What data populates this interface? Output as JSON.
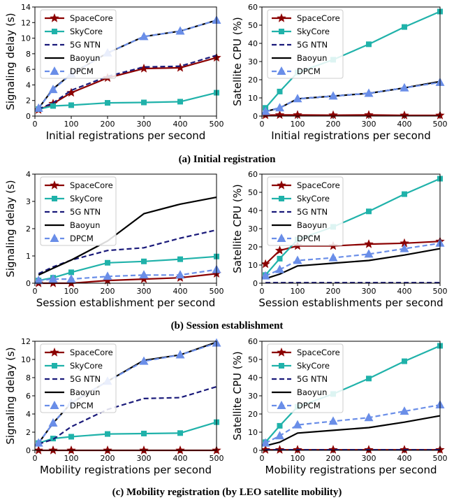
{
  "captions": [
    "(a) Initial registration",
    "(b) Session establishment",
    "(c) Mobility registration (by LEO satellite mobility)"
  ],
  "colors": {
    "SpaceCore": "#8B0000",
    "SkyCore": "#20B2AA",
    "5G NTN": "#1A1A7A",
    "Baoyun": "#000000",
    "DPCM": "#6A8EE8"
  },
  "chart_data": [
    {
      "type": "line",
      "title": "",
      "xlabel": "Initial registrations per second",
      "ylabel": "Signaling delay (s)",
      "xlim": [
        0,
        500
      ],
      "ylim": [
        0,
        14
      ],
      "xticks": [
        0,
        100,
        200,
        300,
        400,
        500
      ],
      "yticks": [
        0,
        2,
        4,
        6,
        8,
        10,
        12,
        14
      ],
      "legend": "top-left",
      "x": [
        10,
        50,
        100,
        200,
        300,
        400,
        500
      ],
      "series": [
        {
          "name": "SpaceCore",
          "values": [
            0.8,
            1.6,
            3.0,
            4.9,
            6.1,
            6.2,
            7.5
          ]
        },
        {
          "name": "SkyCore",
          "values": [
            0.9,
            1.3,
            1.4,
            1.7,
            1.75,
            1.85,
            3.0
          ]
        },
        {
          "name": "5G NTN",
          "values": [
            0.9,
            1.7,
            3.3,
            5.1,
            6.3,
            6.4,
            7.8
          ]
        },
        {
          "name": "Baoyun",
          "values": [
            1.0,
            3.5,
            5.4,
            8.1,
            10.2,
            10.9,
            12.3
          ]
        },
        {
          "name": "DPCM",
          "values": [
            1.0,
            3.4,
            5.4,
            8.1,
            10.2,
            10.9,
            12.3
          ]
        }
      ]
    },
    {
      "type": "line",
      "title": "",
      "xlabel": "Initial registrations per second",
      "ylabel": "Satellite CPU (%)",
      "xlim": [
        0,
        500
      ],
      "ylim": [
        0,
        60
      ],
      "xticks": [
        0,
        100,
        200,
        300,
        400,
        500
      ],
      "yticks": [
        0,
        10,
        20,
        30,
        40,
        50,
        60
      ],
      "legend": "top-left",
      "x": [
        10,
        50,
        100,
        200,
        300,
        400,
        500
      ],
      "series": [
        {
          "name": "SpaceCore",
          "values": [
            0.5,
            0.6,
            0.6,
            0.5,
            0.6,
            0.4,
            0.4
          ]
        },
        {
          "name": "SkyCore",
          "values": [
            4.5,
            13.5,
            24,
            31,
            39.5,
            49,
            57.5
          ]
        },
        {
          "name": "5G NTN",
          "values": [
            2.5,
            4.5,
            9.5,
            11,
            12.5,
            15.5,
            19
          ]
        },
        {
          "name": "Baoyun",
          "values": [
            2.5,
            4.5,
            9.5,
            11,
            12.5,
            15.5,
            19
          ]
        },
        {
          "name": "DPCM",
          "values": [
            2.5,
            4.5,
            9.5,
            11,
            12.5,
            15.5,
            18.5
          ]
        }
      ]
    },
    {
      "type": "line",
      "title": "",
      "xlabel": "Session establishment per second",
      "ylabel": "Signaling delay (s)",
      "xlim": [
        0,
        500
      ],
      "ylim": [
        0,
        4
      ],
      "xticks": [
        0,
        100,
        200,
        300,
        400,
        500
      ],
      "yticks": [
        0,
        1,
        2,
        3,
        4
      ],
      "legend": "top-left",
      "x": [
        10,
        50,
        100,
        200,
        300,
        400,
        500
      ],
      "series": [
        {
          "name": "SpaceCore",
          "values": [
            0.0,
            0.0,
            0.0,
            0.1,
            0.15,
            0.2,
            0.35
          ]
        },
        {
          "name": "SkyCore",
          "values": [
            0.1,
            0.2,
            0.4,
            0.75,
            0.8,
            0.88,
            0.98
          ]
        },
        {
          "name": "5G NTN",
          "values": [
            0.35,
            0.6,
            0.85,
            1.2,
            1.3,
            1.65,
            1.95
          ]
        },
        {
          "name": "Baoyun",
          "values": [
            0.3,
            0.55,
            0.85,
            1.55,
            2.55,
            2.9,
            3.15
          ]
        },
        {
          "name": "DPCM",
          "values": [
            0.1,
            0.15,
            0.15,
            0.25,
            0.3,
            0.3,
            0.5
          ]
        }
      ]
    },
    {
      "type": "line",
      "title": "",
      "xlabel": "Session establishments per second",
      "ylabel": "Satellite CPU (%)",
      "xlim": [
        0,
        500
      ],
      "ylim": [
        0,
        60
      ],
      "xticks": [
        0,
        100,
        200,
        300,
        400,
        500
      ],
      "yticks": [
        0,
        10,
        20,
        30,
        40,
        50,
        60
      ],
      "legend": "top-left",
      "x": [
        10,
        50,
        100,
        200,
        300,
        400,
        500
      ],
      "series": [
        {
          "name": "SpaceCore",
          "values": [
            10.5,
            18,
            20.5,
            20.5,
            21.5,
            22,
            23
          ]
        },
        {
          "name": "SkyCore",
          "values": [
            4.5,
            13.5,
            24,
            31,
            39.5,
            49,
            57.5
          ]
        },
        {
          "name": "5G NTN",
          "values": [
            0.3,
            0.3,
            0.3,
            0.3,
            0.3,
            0.3,
            0.3
          ]
        },
        {
          "name": "Baoyun",
          "values": [
            2.5,
            5,
            9.5,
            11,
            12.5,
            15.5,
            19
          ]
        },
        {
          "name": "DPCM",
          "values": [
            4,
            7.5,
            12.5,
            14,
            16,
            19,
            22
          ]
        }
      ]
    },
    {
      "type": "line",
      "title": "",
      "xlabel": "Mobility registrations per second",
      "ylabel": "Signaling delay (s)",
      "xlim": [
        0,
        500
      ],
      "ylim": [
        0,
        12
      ],
      "xticks": [
        0,
        100,
        200,
        300,
        400,
        500
      ],
      "yticks": [
        0,
        2,
        4,
        6,
        8,
        10,
        12
      ],
      "legend": "top-left",
      "x": [
        10,
        50,
        100,
        200,
        300,
        400,
        500
      ],
      "series": [
        {
          "name": "SpaceCore",
          "values": [
            0.0,
            0.0,
            0.0,
            0.0,
            0.0,
            0.0,
            0.0
          ]
        },
        {
          "name": "SkyCore",
          "values": [
            0.8,
            1.3,
            1.5,
            1.8,
            1.85,
            1.9,
            3.1
          ]
        },
        {
          "name": "5G NTN",
          "values": [
            0.7,
            1.2,
            2.6,
            4.5,
            5.7,
            5.8,
            7.0
          ]
        },
        {
          "name": "Baoyun",
          "values": [
            0.8,
            3.0,
            5.2,
            7.6,
            9.9,
            10.5,
            11.9
          ]
        },
        {
          "name": "DPCM",
          "values": [
            0.8,
            3.0,
            5.2,
            7.6,
            9.8,
            10.5,
            11.8
          ]
        }
      ]
    },
    {
      "type": "line",
      "title": "",
      "xlabel": "Mobility registrations per second",
      "ylabel": "Satellite CPU (%)",
      "xlim": [
        0,
        500
      ],
      "ylim": [
        0,
        60
      ],
      "xticks": [
        0,
        100,
        200,
        300,
        400,
        500
      ],
      "yticks": [
        0,
        10,
        20,
        30,
        40,
        50,
        60
      ],
      "legend": "top-left",
      "x": [
        10,
        50,
        100,
        200,
        300,
        400,
        500
      ],
      "series": [
        {
          "name": "SpaceCore",
          "values": [
            0.3,
            0.3,
            0.3,
            0.3,
            0.3,
            0.3,
            0.3
          ]
        },
        {
          "name": "SkyCore",
          "values": [
            4.5,
            13.5,
            24,
            31,
            39.5,
            49,
            57.5
          ]
        },
        {
          "name": "5G NTN",
          "values": [
            0.3,
            0.3,
            0.3,
            0.3,
            0.3,
            0.3,
            0.3
          ]
        },
        {
          "name": "Baoyun",
          "values": [
            2.5,
            4.5,
            9.5,
            11,
            12.5,
            15.5,
            19
          ]
        },
        {
          "name": "DPCM",
          "values": [
            4,
            8,
            14,
            16,
            18,
            21.5,
            25
          ]
        }
      ]
    }
  ]
}
